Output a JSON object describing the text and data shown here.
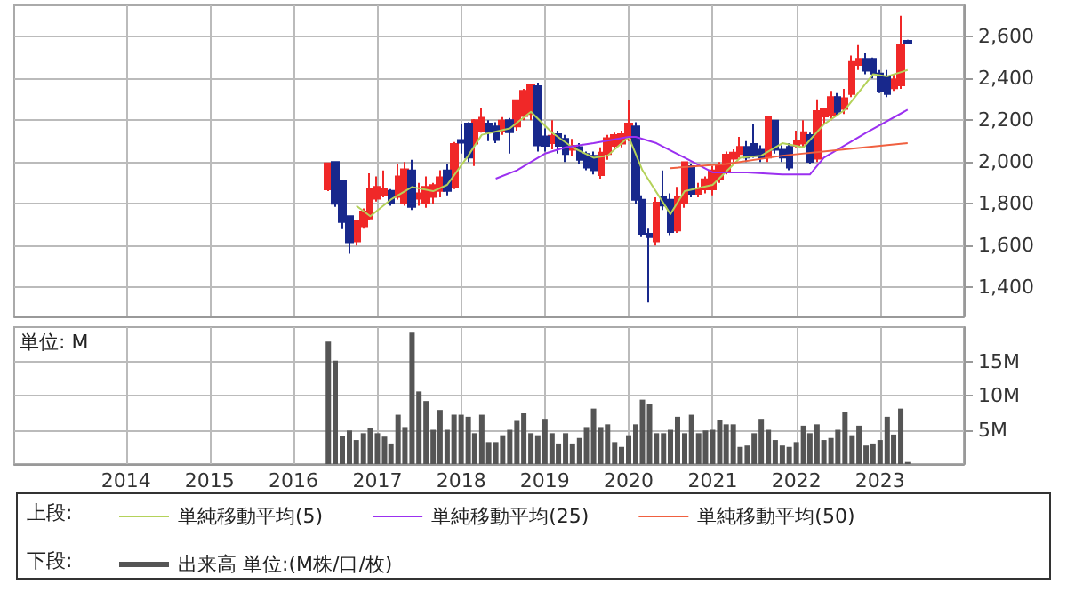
{
  "chart_data": [
    {
      "type": "candlestick",
      "xlim": [
        "2012-09",
        "2024-01"
      ],
      "xticks": [
        "2014",
        "2015",
        "2016",
        "2017",
        "2018",
        "2019",
        "2020",
        "2021",
        "2022",
        "2023"
      ],
      "ylim": [
        1260,
        2750
      ],
      "yticks": [
        {
          "value": 1400,
          "label": "1,400"
        },
        {
          "value": 1600,
          "label": "1,600"
        },
        {
          "value": 1800,
          "label": "1,800"
        },
        {
          "value": 2000,
          "label": "2,000"
        },
        {
          "value": 2200,
          "label": "2,200"
        },
        {
          "value": 2400,
          "label": "2,400"
        },
        {
          "value": 2600,
          "label": "2,600"
        }
      ],
      "tick_labels": "y",
      "grid": true,
      "legend": "bottom",
      "legend_title": "上段:",
      "series": [
        {
          "color": "#f02828",
          "x": [
            "2016-06",
            "2016-10",
            "2016-11",
            "2016-12",
            "2017-01",
            "2017-02",
            "2017-04",
            "2017-05",
            "2017-07",
            "2017-08",
            "2017-09",
            "2017-10",
            "2017-12",
            "2018-03",
            "2018-04",
            "2018-07",
            "2018-09",
            "2018-10",
            "2018-11",
            "2019-02",
            "2019-05",
            "2019-09",
            "2019-10",
            "2019-11",
            "2019-12",
            "2020-01",
            "2020-05",
            "2020-08",
            "2020-09",
            "2020-11",
            "2020-12",
            "2021-01",
            "2021-02",
            "2021-03",
            "2021-04",
            "2021-05",
            "2021-09",
            "2022-01",
            "2022-02",
            "2022-04",
            "2022-05",
            "2022-06",
            "2022-08",
            "2022-09",
            "2022-10",
            "2023-03",
            "2023-04"
          ],
          "ohlc": [
            [
              1869,
              1993,
              1860,
              1993
            ],
            [
              1620,
              1720,
              1600,
              1720
            ],
            [
              1692,
              1777,
              1680,
              1762
            ],
            [
              1729,
              1945,
              1720,
              1869
            ],
            [
              1824,
              1930,
              1810,
              1881
            ],
            [
              1841,
              1959,
              1830,
              1869
            ],
            [
              1833,
              1988,
              1820,
              1931
            ],
            [
              1805,
              2000,
              1790,
              1965
            ],
            [
              1824,
              1900,
              1790,
              1850
            ],
            [
              1805,
              1930,
              1780,
              1881
            ],
            [
              1833,
              1900,
              1800,
              1889
            ],
            [
              1861,
              1960,
              1830,
              1926
            ],
            [
              1881,
              2095,
              1870,
              2086
            ],
            [
              2088,
              2205,
              1980,
              2200
            ],
            [
              2150,
              2260,
              2140,
              2212
            ],
            [
              2150,
              2215,
              2130,
              2198
            ],
            [
              2170,
              2300,
              2150,
              2296
            ],
            [
              2220,
              2350,
              2200,
              2340
            ],
            [
              2230,
              2370,
              2200,
              2370
            ],
            [
              2090,
              2200,
              2060,
              2125
            ],
            [
              2058,
              2110,
              2030,
              2077
            ],
            [
              1937,
              2070,
              1920,
              2044
            ],
            [
              2038,
              2130,
              2010,
              2114
            ],
            [
              2077,
              2140,
              2060,
              2128
            ],
            [
              2088,
              2150,
              2070,
              2133
            ],
            [
              2114,
              2296,
              2100,
              2184
            ],
            [
              1620,
              1830,
              1600,
              1805
            ],
            [
              1672,
              1880,
              1660,
              1833
            ],
            [
              1805,
              2000,
              1780,
              1999
            ],
            [
              1847,
              1900,
              1830,
              1869
            ],
            [
              1869,
              1930,
              1850,
              1917
            ],
            [
              1869,
              1980,
              1840,
              1959
            ],
            [
              1917,
              2000,
              1900,
              1987
            ],
            [
              1951,
              2050,
              1940,
              2035
            ],
            [
              2016,
              2060,
              2000,
              2044
            ],
            [
              2038,
              2120,
              2020,
              2072
            ],
            [
              2021,
              2220,
              2000,
              2218
            ],
            [
              2077,
              2150,
              2070,
              2100
            ],
            [
              2088,
              2200,
              2070,
              2142
            ],
            [
              2016,
              2300,
              2000,
              2243
            ],
            [
              2218,
              2260,
              2180,
              2254
            ],
            [
              2226,
              2340,
              2200,
              2310
            ],
            [
              2254,
              2350,
              2230,
              2305
            ],
            [
              2325,
              2510,
              2310,
              2479
            ],
            [
              2465,
              2560,
              2440,
              2493
            ],
            [
              2353,
              2420,
              2340,
              2395
            ],
            [
              2367,
              2700,
              2350,
              2563
            ]
          ]
        },
        {
          "color": "#18288c",
          "x": [
            "2016-07",
            "2016-08",
            "2016-09",
            "2017-03",
            "2017-06",
            "2017-11",
            "2018-01",
            "2018-02",
            "2018-05",
            "2018-06",
            "2018-08",
            "2018-12",
            "2019-01",
            "2019-03",
            "2019-04",
            "2019-06",
            "2019-07",
            "2019-08",
            "2020-02",
            "2020-03",
            "2020-04",
            "2020-06",
            "2020-07",
            "2020-10",
            "2021-06",
            "2021-07",
            "2021-08",
            "2021-10",
            "2021-11",
            "2021-12",
            "2022-03",
            "2022-07",
            "2022-11",
            "2022-12",
            "2023-01",
            "2023-02",
            "2023-05"
          ],
          "ohlc": [
            [
              2000,
              2000,
              1785,
              1800
            ],
            [
              1909,
              1909,
              1678,
              1712
            ],
            [
              1740,
              1740,
              1560,
              1616
            ],
            [
              1861,
              1870,
              1790,
              1805
            ],
            [
              1959,
              2010,
              1770,
              1785
            ],
            [
              1959,
              1990,
              1840,
              1861
            ],
            [
              2105,
              2180,
              2040,
              2092
            ],
            [
              2184,
              2190,
              2000,
              2021
            ],
            [
              2184,
              2200,
              2100,
              2142
            ],
            [
              2170,
              2190,
              2090,
              2105
            ],
            [
              2200,
              2210,
              2040,
              2142
            ],
            [
              2363,
              2380,
              2050,
              2080
            ],
            [
              2122,
              2160,
              2050,
              2077
            ],
            [
              2133,
              2150,
              2040,
              2077
            ],
            [
              2110,
              2130,
              2000,
              2038
            ],
            [
              2071,
              2090,
              1990,
              2010
            ],
            [
              2038,
              2050,
              1960,
              1973
            ],
            [
              2030,
              2050,
              1940,
              1960
            ],
            [
              2170,
              2190,
              1800,
              1819
            ],
            [
              1819,
              1840,
              1640,
              1656
            ],
            [
              1656,
              1680,
              1327,
              1640
            ],
            [
              1833,
              1959,
              1770,
              1791
            ],
            [
              1819,
              1850,
              1650,
              1664
            ],
            [
              1979,
              1990,
              1830,
              1847
            ],
            [
              2072,
              2100,
              2000,
              2021
            ],
            [
              2086,
              2180,
              2020,
              2030
            ],
            [
              2058,
              2080,
              2000,
              2021
            ],
            [
              2198,
              2200,
              2040,
              2058
            ],
            [
              2058,
              2080,
              2000,
              2021
            ],
            [
              2072,
              2090,
              1960,
              1973
            ],
            [
              2128,
              2140,
              1990,
              2001
            ],
            [
              2310,
              2330,
              2220,
              2240
            ],
            [
              2493,
              2520,
              2420,
              2437
            ],
            [
              2493,
              2500,
              2400,
              2423
            ],
            [
              2423,
              2440,
              2330,
              2339
            ],
            [
              2409,
              2440,
              2310,
              2325
            ],
            [
              2580,
              2585,
              2565,
              2570
            ]
          ]
        },
        {
          "type": "line",
          "name": "単純移動平均(5)",
          "color": "#b4d25a",
          "x": [
            "2016-10",
            "2016-12",
            "2017-03",
            "2017-06",
            "2017-09",
            "2017-11",
            "2018-02",
            "2018-04",
            "2018-08",
            "2018-11",
            "2019-02",
            "2019-05",
            "2019-08",
            "2019-10",
            "2020-01",
            "2020-03",
            "2020-07",
            "2020-09",
            "2021-01",
            "2021-05",
            "2021-08",
            "2021-11",
            "2022-02",
            "2022-05",
            "2022-08",
            "2022-12",
            "2023-02",
            "2023-05"
          ],
          "values": [
            1790,
            1740,
            1820,
            1880,
            1860,
            1890,
            2030,
            2130,
            2160,
            2240,
            2140,
            2070,
            2020,
            2030,
            2120,
            1960,
            1750,
            1860,
            1890,
            2020,
            2030,
            2090,
            2070,
            2180,
            2250,
            2420,
            2410,
            2440
          ]
        },
        {
          "type": "line",
          "name": "単純移動平均(25)",
          "color": "#9b30f0",
          "x": [
            "2018-06",
            "2018-09",
            "2019-01",
            "2019-04",
            "2019-08",
            "2020-01",
            "2020-02",
            "2020-05",
            "2020-09",
            "2021-01",
            "2021-06",
            "2021-11",
            "2022-03",
            "2022-05",
            "2022-11",
            "2023-05"
          ],
          "values": [
            1920,
            1960,
            2040,
            2070,
            2090,
            2120,
            2120,
            2090,
            2020,
            1950,
            1950,
            1940,
            1940,
            2020,
            2140,
            2250
          ]
        },
        {
          "type": "line",
          "name": "単純移動平均(50)",
          "color": "#f06040",
          "x": [
            "2020-07",
            "2021-03",
            "2021-11",
            "2022-08",
            "2023-05"
          ],
          "values": [
            1970,
            1990,
            2030,
            2060,
            2090
          ]
        }
      ]
    },
    {
      "type": "bar",
      "xlim": [
        "2012-09",
        "2024-01"
      ],
      "xticks": [
        "2014",
        "2015",
        "2016",
        "2017",
        "2018",
        "2019",
        "2020",
        "2021",
        "2022",
        "2023"
      ],
      "ylim": [
        0,
        20
      ],
      "yticks": [
        {
          "value": 5,
          "label": "5M"
        },
        {
          "value": 10,
          "label": "10M"
        },
        {
          "value": 15,
          "label": "15M"
        }
      ],
      "grid": true,
      "legend": "bottom",
      "legend_title": "下段:",
      "annotations": [
        "単位: M"
      ],
      "x": [
        "2016-06",
        "2016-07",
        "2016-08",
        "2016-09",
        "2016-10",
        "2016-11",
        "2016-12",
        "2017-01",
        "2017-02",
        "2017-03",
        "2017-04",
        "2017-05",
        "2017-06",
        "2017-07",
        "2017-08",
        "2017-09",
        "2017-10",
        "2017-11",
        "2017-12",
        "2018-01",
        "2018-02",
        "2018-03",
        "2018-04",
        "2018-05",
        "2018-06",
        "2018-07",
        "2018-08",
        "2018-09",
        "2018-10",
        "2018-11",
        "2018-12",
        "2019-01",
        "2019-02",
        "2019-03",
        "2019-04",
        "2019-05",
        "2019-06",
        "2019-07",
        "2019-08",
        "2019-09",
        "2019-10",
        "2019-11",
        "2019-12",
        "2020-01",
        "2020-02",
        "2020-03",
        "2020-04",
        "2020-05",
        "2020-06",
        "2020-07",
        "2020-08",
        "2020-09",
        "2020-10",
        "2020-11",
        "2020-12",
        "2021-01",
        "2021-02",
        "2021-03",
        "2021-04",
        "2021-05",
        "2021-06",
        "2021-07",
        "2021-08",
        "2021-09",
        "2021-10",
        "2021-11",
        "2021-12",
        "2022-01",
        "2022-02",
        "2022-03",
        "2022-04",
        "2022-05",
        "2022-06",
        "2022-07",
        "2022-08",
        "2022-09",
        "2022-10",
        "2022-11",
        "2022-12",
        "2023-01",
        "2023-02",
        "2023-03",
        "2023-04",
        "2023-05"
      ],
      "series": [
        {
          "name": "出来高 単位:(M株/口/枚)",
          "color": "#555555",
          "values": [
            17.9,
            15.1,
            4.1,
            4.9,
            3.5,
            4.5,
            5.3,
            4.5,
            4.0,
            3.0,
            7.2,
            5.4,
            19.2,
            10.6,
            9.2,
            5.0,
            7.9,
            5.0,
            7.2,
            7.2,
            6.9,
            4.5,
            7.2,
            3.2,
            3.2,
            4.2,
            5.0,
            6.3,
            7.4,
            4.5,
            4.2,
            6.6,
            4.5,
            3.0,
            4.5,
            3.0,
            3.8,
            5.4,
            8.1,
            5.4,
            5.8,
            3.2,
            2.5,
            4.2,
            5.8,
            9.4,
            8.7,
            4.5,
            4.5,
            5.0,
            6.9,
            4.5,
            7.2,
            4.5,
            4.9,
            5.0,
            6.4,
            5.8,
            5.8,
            2.5,
            2.7,
            4.5,
            6.6,
            5.0,
            3.5,
            2.7,
            2.5,
            3.2,
            5.6,
            4.5,
            5.8,
            3.5,
            3.8,
            5.0,
            7.6,
            4.2,
            5.6,
            2.7,
            3.0,
            3.5,
            6.9,
            4.3,
            8.1,
            0.3
          ]
        }
      ]
    }
  ]
}
